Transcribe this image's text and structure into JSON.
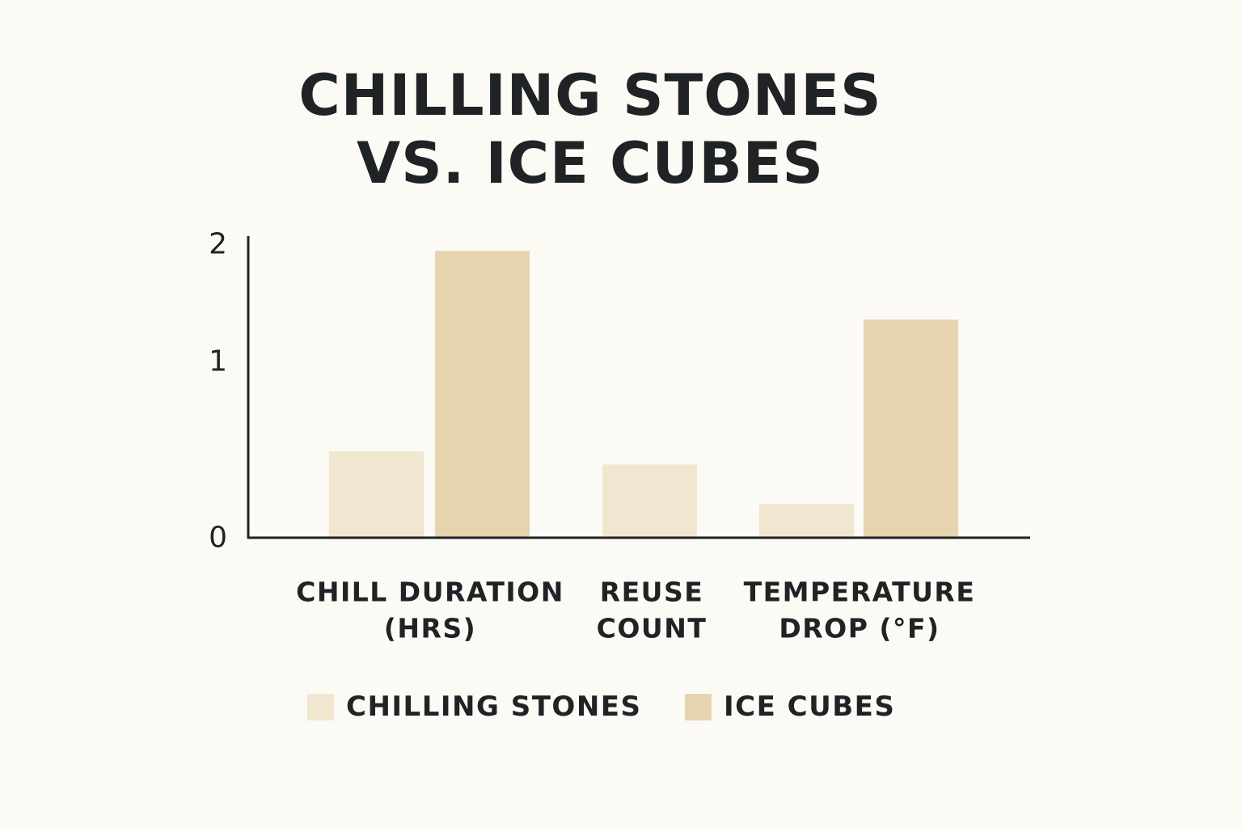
{
  "chart_data": {
    "type": "bar",
    "title_lines": [
      "CHILLING STONES",
      "VS. ICE CUBES"
    ],
    "categories": [
      [
        "CHILL DURATION",
        "(HRS)"
      ],
      [
        "REUSE",
        "COUNT"
      ],
      [
        "TEMPERATURE",
        "DROP (°F)"
      ]
    ],
    "series": [
      {
        "name": "CHILLING STONES",
        "color": "#f1e7d0",
        "values": [
          0.59,
          0.5,
          0.23
        ]
      },
      {
        "name": "ICE CUBES",
        "color": "#e6d4ae",
        "values": [
          1.96,
          null,
          1.49
        ]
      }
    ],
    "y_ticks": [
      "0",
      "1",
      "2"
    ],
    "ylim": [
      0,
      2
    ],
    "legend_position": "bottom",
    "grid": false
  }
}
